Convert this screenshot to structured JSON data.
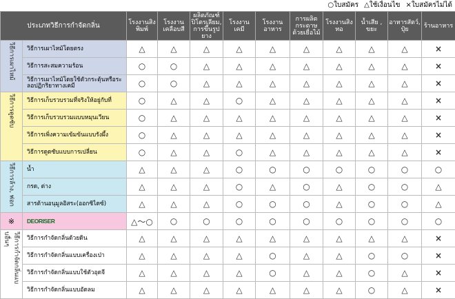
{
  "legend": [
    "○ใบสมัคร",
    "△ใช้เงื่อนไข",
    "×ใบสมัครไม่ได้"
  ],
  "header": {
    "columns": [
      "ประเภทวิธีการกำจัดกลิ่น",
      "โรงงานสิงพิมพ์",
      "โรงงานเคลือบสี",
      "ผลิตภัณฑ์ปิโตรเลียม, การขึ้นรูปยาง",
      "โรงงานเคมี",
      "โรงงานอาหาร",
      "การผลิตกระดาษด้วยเยื่อไม้",
      "โรงงานสิงทอ",
      "น้ำเสีย , ขยะ",
      "อาหารสัตว์, ปุ๋ย",
      "ร้านอาหาร"
    ]
  },
  "groups": [
    {
      "label": "วิธีการเผาไหม้",
      "rows": [
        {
          "method": "วิธีการเผาไหม้โดยตรง",
          "marks": [
            "△",
            "△",
            "△",
            "△",
            "△",
            "△",
            "△",
            "△",
            "△",
            "×"
          ]
        },
        {
          "method": "วิธีการสะสมความร้อน",
          "marks": [
            "○",
            "○",
            "△",
            "△",
            "△",
            "△",
            "△",
            "△",
            "△",
            "×"
          ]
        },
        {
          "method": "วิธีการเผาไหม้โดยใช้ตัวกระตุ้นหรือระลอปฏิกริยาทางเคมี",
          "marks": [
            "○",
            "○",
            "△",
            "△",
            "△",
            "△",
            "△",
            "△",
            "△",
            "×"
          ]
        }
      ]
    },
    {
      "label": "วิธีการดูดซับ",
      "rows": [
        {
          "method": "วิธีการเก็บรวบรวมที่จริงให้อยู่กับที่",
          "marks": [
            "○",
            "△",
            "△",
            "○",
            "△",
            "△",
            "△",
            "△",
            "△",
            "×"
          ]
        },
        {
          "method": "วิธีการเก็บรวบรวมแบบหมุนเวียน",
          "marks": [
            "○",
            "△",
            "△",
            "△",
            "△",
            "△",
            "△",
            "△",
            "△",
            "×"
          ]
        },
        {
          "method": "วิธีการเพิ่งความเข้มข้นแบบรังผึ้ง",
          "marks": [
            "○",
            "△",
            "△",
            "△",
            "△",
            "△",
            "△",
            "△",
            "△",
            "×"
          ]
        },
        {
          "method": "วิธีการดูดซับแบบการเปลี่ยน",
          "marks": [
            "○",
            "△",
            "△",
            "○",
            "△",
            "△",
            "△",
            "△",
            "△",
            "×"
          ]
        }
      ]
    },
    {
      "label": "วิธีการล้าง, ฟอก",
      "rows": [
        {
          "method": "น้ำ",
          "marks": [
            "△",
            "△",
            "△",
            "○",
            "○",
            "○",
            "○",
            "○",
            "○",
            "○"
          ]
        },
        {
          "method": "กรด, ด่าง",
          "marks": [
            "△",
            "△",
            "△",
            "○",
            "△",
            "○",
            "△",
            "○",
            "○",
            "△"
          ]
        },
        {
          "method": "สารต้านอนุมูลอิสระ(ออกซิไดซ์)",
          "marks": [
            "△",
            "△",
            "△",
            "○",
            "○",
            "○",
            "△",
            "○",
            "○",
            "△"
          ]
        }
      ]
    },
    {
      "label": "※",
      "rows": [
        {
          "method": "DEORISER",
          "marks": [
            "△〜○",
            "○",
            "○",
            "○",
            "○",
            "○",
            "○",
            "○",
            "○",
            "○"
          ]
        }
      ]
    },
    {
      "label": "วิธีการกำจัดกลิ่นแบบอื่นๆ",
      "rows": [
        {
          "method": "วิธีการกำจัดกลิ่นด้วยดิน",
          "marks": [
            "△",
            "△",
            "△",
            "△",
            "△",
            "△",
            "△",
            "△",
            "△",
            "×"
          ]
        },
        {
          "method": "วิธีการกำจัดกลิ่นแบบเครื่องเป่า",
          "marks": [
            "△",
            "△",
            "△",
            "△",
            "○",
            "△",
            "△",
            "○",
            "○",
            "×"
          ]
        },
        {
          "method": "วิธีการกำจัดกลิ่นแบบใช้ตัวอุดจี",
          "marks": [
            "△",
            "△",
            "△",
            "△",
            "○",
            "△",
            "△",
            "○",
            "△",
            "×"
          ]
        },
        {
          "method": "วิธีการกำจัดกลิ่นแบบอัดลม",
          "marks": [
            "△",
            "△",
            "△",
            "△",
            "△",
            "△",
            "△",
            "○",
            "△",
            "×"
          ]
        }
      ]
    }
  ]
}
